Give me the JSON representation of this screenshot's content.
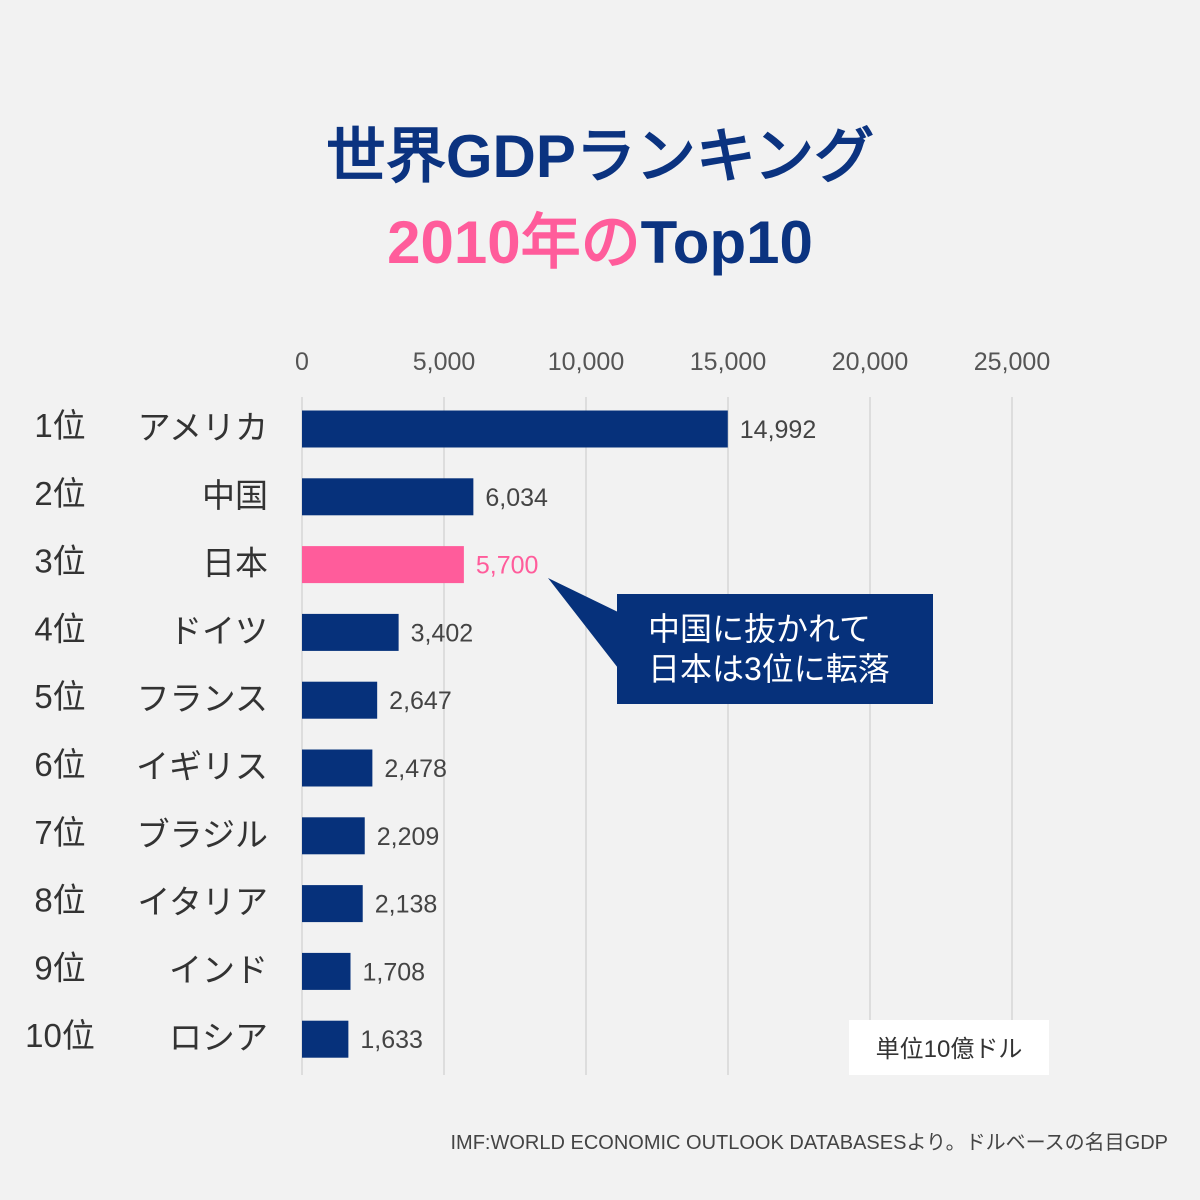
{
  "chart_data": {
    "type": "bar",
    "orientation": "horizontal",
    "title": "世界GDPランキング",
    "subtitle_parts": [
      "2010年の",
      "Top10"
    ],
    "ranks": [
      "1位",
      "2位",
      "3位",
      "4位",
      "5位",
      "6位",
      "7位",
      "8位",
      "9位",
      "10位"
    ],
    "categories": [
      "アメリカ",
      "中国",
      "日本",
      "ドイツ",
      "フランス",
      "イギリス",
      "ブラジル",
      "イタリア",
      "インド",
      "ロシア"
    ],
    "values": [
      14992,
      6034,
      5700,
      3402,
      2647,
      2478,
      2209,
      2138,
      1708,
      1633
    ],
    "value_labels": [
      "14,992",
      "6,034",
      "5,700",
      "3,402",
      "2,647",
      "2,478",
      "2,209",
      "2,138",
      "1,708",
      "1,633"
    ],
    "highlight_index": 2,
    "xlim": [
      0,
      25000
    ],
    "x_ticks": [
      0,
      5000,
      10000,
      15000,
      20000,
      25000
    ],
    "x_tick_labels": [
      "0",
      "5,000",
      "10,000",
      "15,000",
      "20,000",
      "25,000"
    ],
    "grid": true,
    "unit_label": "単位10億ドル",
    "annotation": [
      "中国に抜かれて",
      "日本は3位に転落"
    ],
    "source": "IMF:WORLD ECONOMIC OUTLOOK DATABASESより。ドルベースの名目GDP"
  },
  "colors": {
    "background": "#f2f2f2",
    "bar": "#06317b",
    "highlight": "#ff5c9b",
    "title": "#0b3380",
    "grid": "#d6d6d6",
    "text": "#444444"
  }
}
